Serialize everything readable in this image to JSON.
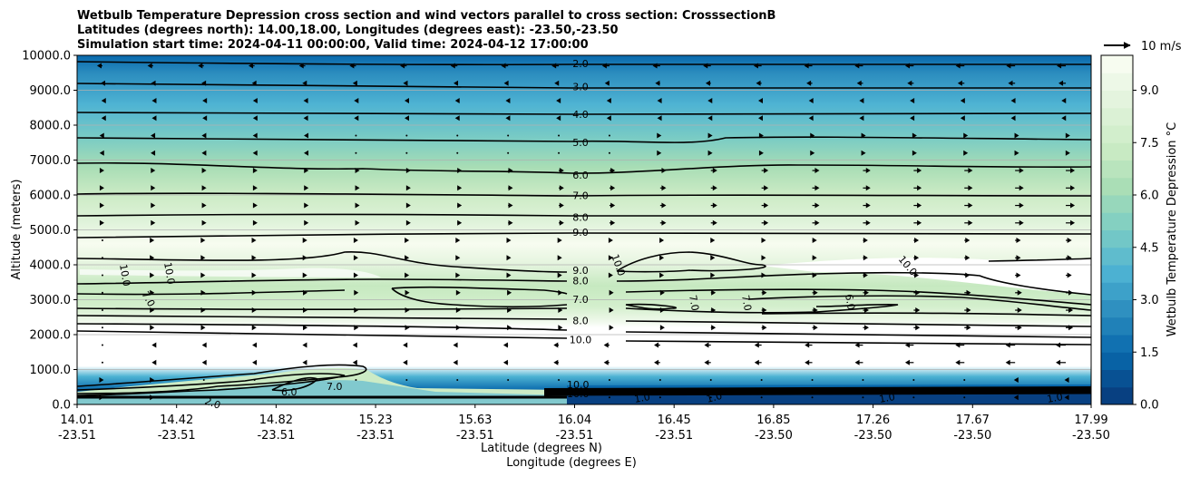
{
  "title_lines": [
    "Wetbulb Temperature Depression cross section and wind vectors parallel to cross section: CrosssectionB",
    "Latitudes (degrees north): 14.00,18.00, Longitudes (degrees east): -23.50,-23.50",
    "Simulation start time: 2024-04-11 00:00:00, Valid time: 2024-04-12 17:00:00"
  ],
  "quiver_key_label": "10 m/s",
  "chart_data": {
    "type": "heatmap",
    "title": "Wetbulb Temperature Depression cross section and wind vectors parallel to cross section: CrosssectionB",
    "xlabel": "Latitude (degrees N)",
    "xlabel2": "Longitude (degrees E)",
    "ylabel": "Altitude (meters)",
    "ylim": [
      0,
      10000
    ],
    "y_ticks": [
      "0.0",
      "1000.0",
      "2000.0",
      "3000.0",
      "4000.0",
      "5000.0",
      "6000.0",
      "7000.0",
      "8000.0",
      "9000.0",
      "10000.0"
    ],
    "x_ticks": [
      {
        "lat": "14.01",
        "lon": "-23.51"
      },
      {
        "lat": "14.42",
        "lon": "-23.51"
      },
      {
        "lat": "14.82",
        "lon": "-23.51"
      },
      {
        "lat": "15.23",
        "lon": "-23.51"
      },
      {
        "lat": "15.63",
        "lon": "-23.51"
      },
      {
        "lat": "16.04",
        "lon": "-23.51"
      },
      {
        "lat": "16.45",
        "lon": "-23.51"
      },
      {
        "lat": "16.85",
        "lon": "-23.50"
      },
      {
        "lat": "17.26",
        "lon": "-23.50"
      },
      {
        "lat": "17.67",
        "lon": "-23.50"
      },
      {
        "lat": "17.99",
        "lon": "-23.50"
      }
    ],
    "grid": "horizontal",
    "colorbar": {
      "label": "Wetbulb Temperature Depression $^\\circ$C",
      "ticks": [
        "0.0",
        "1.5",
        "3.0",
        "4.5",
        "6.0",
        "7.5",
        "9.0"
      ],
      "range": [
        0,
        10
      ],
      "colormap": [
        "#084081",
        "#0868ac",
        "#2b8cbe",
        "#4eb3d3",
        "#7bccc4",
        "#a8ddb5",
        "#ccebc5",
        "#e0f3db",
        "#f7fcf0"
      ]
    },
    "contour_levels": [
      "1.0",
      "2.0",
      "3.0",
      "4.0",
      "5.0",
      "6.0",
      "7.0",
      "8.0",
      "9.0",
      "10.0"
    ],
    "center_contour_labels": [
      {
        "label": "2.0",
        "alt": 9760
      },
      {
        "label": "3.0",
        "alt": 9110
      },
      {
        "label": "4.0",
        "alt": 8310
      },
      {
        "label": "5.0",
        "alt": 7510
      },
      {
        "label": "6.0",
        "alt": 6570
      },
      {
        "label": "7.0",
        "alt": 5990
      },
      {
        "label": "8.0",
        "alt": 5360
      },
      {
        "label": "9.0",
        "alt": 4940
      },
      {
        "label": "9.0",
        "alt": 3840
      },
      {
        "label": "8.0",
        "alt": 3540
      },
      {
        "label": "7.0",
        "alt": 3010
      },
      {
        "label": "8.0",
        "alt": 2400
      },
      {
        "label": "10.0",
        "alt": 1860
      }
    ],
    "wind_summary": [
      {
        "layer": "9500-10000 m",
        "direction": "toward lower latitude"
      },
      {
        "layer": "7000-9000 m",
        "direction": "mixed, weak"
      },
      {
        "layer": "5000-7000 m",
        "direction": "toward higher latitude"
      },
      {
        "layer": "2000-4500 m",
        "direction": "weak, toward higher latitude"
      },
      {
        "layer": "1000-2000 m",
        "direction": "toward lower latitude at high latitudes"
      }
    ]
  }
}
